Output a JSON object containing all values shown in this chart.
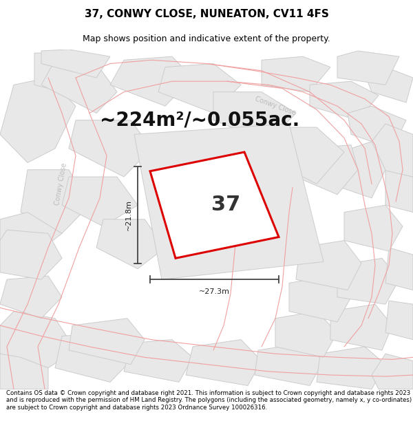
{
  "title": "37, CONWY CLOSE, NUNEATON, CV11 4FS",
  "subtitle": "Map shows position and indicative extent of the property.",
  "area_text": "~224m²/~0.055ac.",
  "number_label": "37",
  "width_label": "~27.3m",
  "height_label": "~21.8m",
  "footer_text": "Contains OS data © Crown copyright and database right 2021. This information is subject to Crown copyright and database rights 2023 and is reproduced with the permission of HM Land Registry. The polygons (including the associated geometry, namely x, y co-ordinates) are subject to Crown copyright and database rights 2023 Ordnance Survey 100026316.",
  "bg_color": "#ffffff",
  "map_bg": "#ffffff",
  "block_fill": "#e8e8e8",
  "block_edge": "#cccccc",
  "road_line": "#f0a0a0",
  "red_outline": "#dd0000",
  "dim_color": "#444444",
  "label_color": "#bbbbbb",
  "title_fontsize": 11,
  "subtitle_fontsize": 9,
  "area_fontsize": 20,
  "number_fontsize": 22,
  "dim_fontsize": 8,
  "road_label_fontsize": 7,
  "footer_fontsize": 6.2
}
